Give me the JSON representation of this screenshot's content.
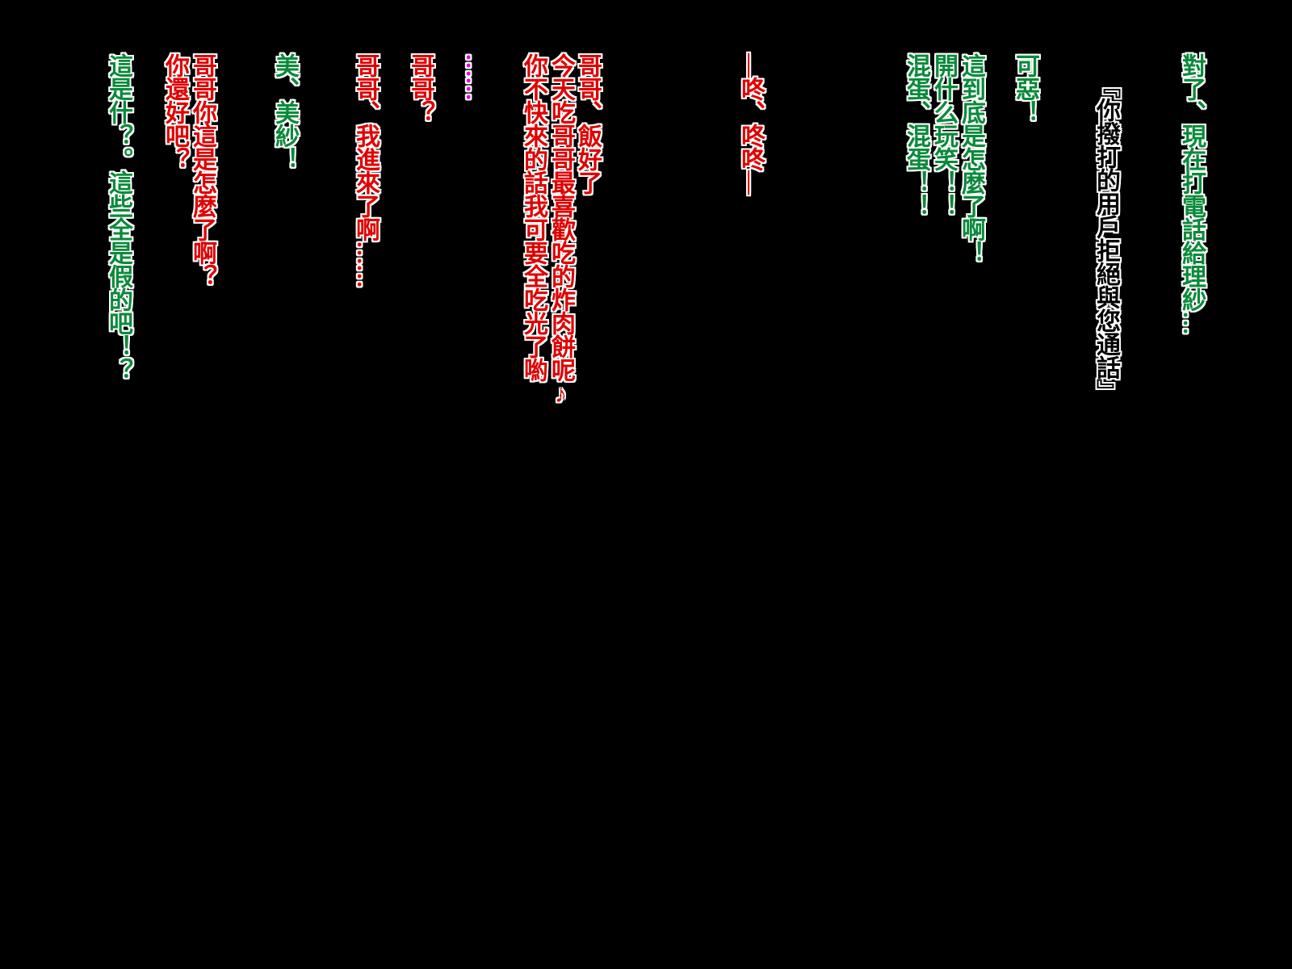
{
  "lines": [
    "對了、現在打電話給理紗…",
    "『你撥打的用戶拒絕與您通話』",
    "可惡！",
    "這到底是怎麼了啊！",
    "開什么玩笑！！",
    "混蛋、混蛋！！",
    "—咚、咚咚—",
    "哥哥、飯好了",
    "今天吃哥哥最喜歡吃的炸肉餅呢♪",
    "你不快來的話我可要全吃光了喲",
    "……",
    "哥哥？",
    "哥哥、我進來了啊……",
    "美、美紗！",
    "哥哥你這是怎麼了啊？",
    "你還好吧？",
    "這是什？。這些全是假的吧！？"
  ]
}
